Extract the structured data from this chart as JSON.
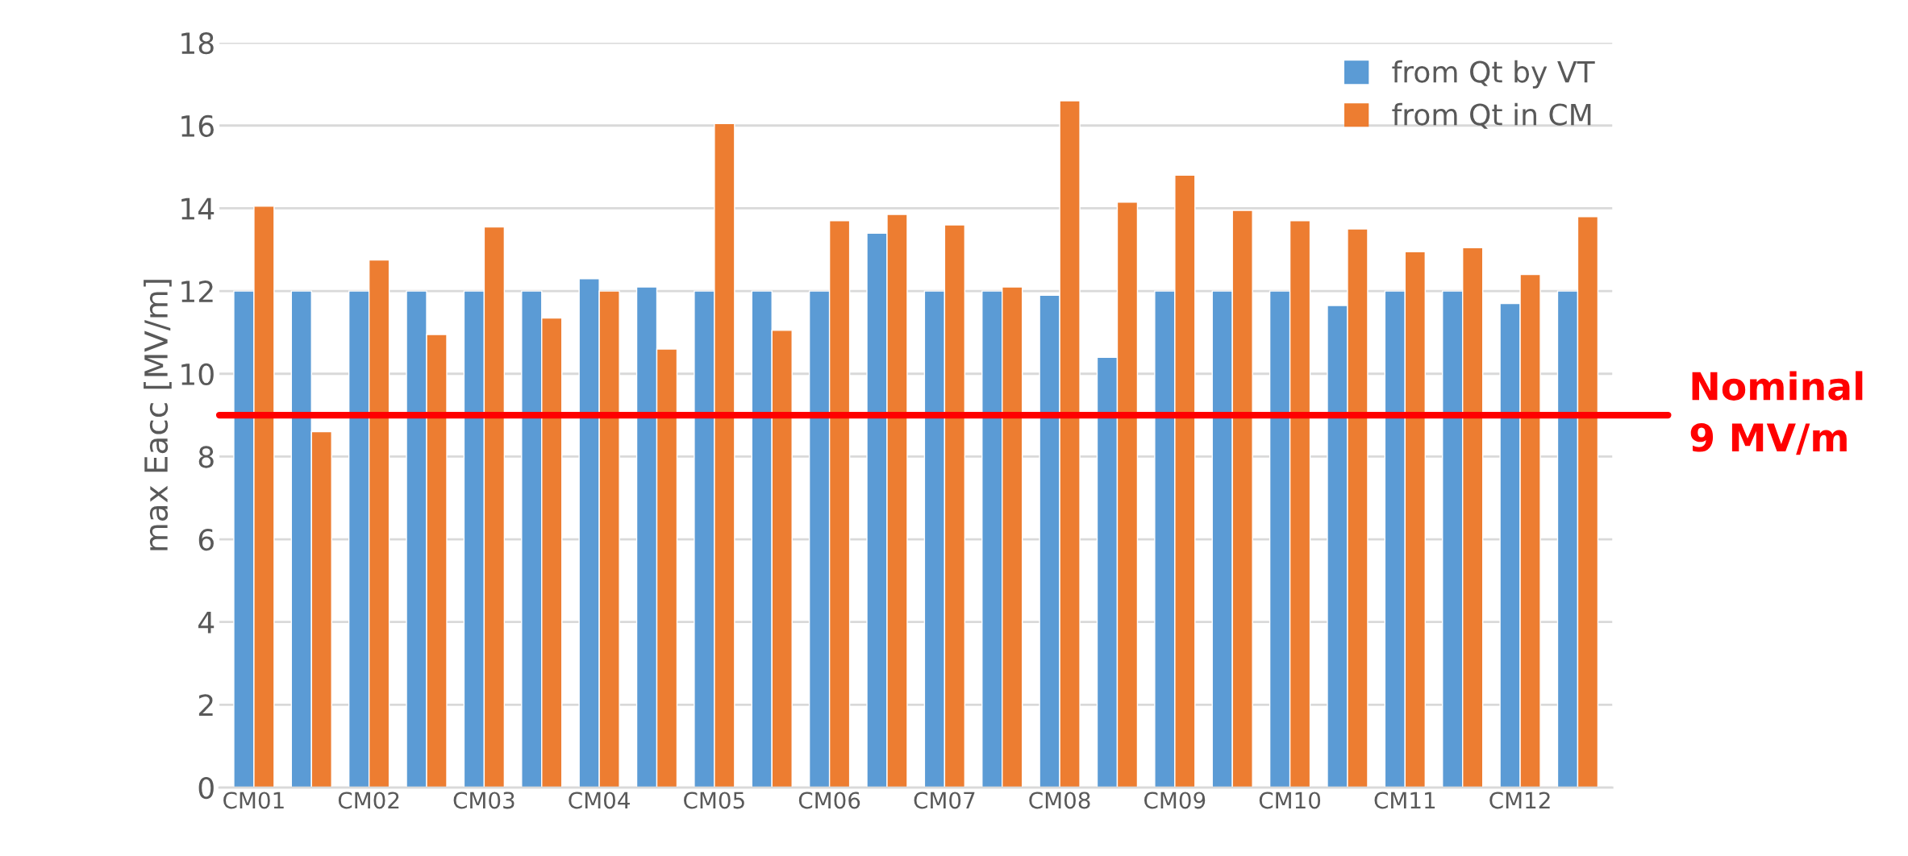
{
  "chart_data": {
    "type": "bar",
    "ylabel": "max Eacc [MV/m]",
    "categories": [
      "CM01",
      null,
      "CM02",
      null,
      "CM03",
      null,
      "CM04",
      null,
      "CM05",
      null,
      "CM06",
      null,
      "CM07",
      null,
      "CM08",
      null,
      "CM09",
      null,
      "CM10",
      null,
      "CM11",
      null,
      "CM12",
      null
    ],
    "series": [
      {
        "name": "from Qt by VT",
        "color": "#5b9bd5",
        "values": [
          12,
          12,
          12,
          12,
          12,
          12,
          12.3,
          12.1,
          12,
          12,
          12,
          13.4,
          12,
          12,
          11.9,
          10.4,
          12,
          12,
          12,
          11.65,
          12,
          12,
          11.7,
          12
        ]
      },
      {
        "name": "from Qt in CM",
        "color": "#ed7d31",
        "values": [
          14.05,
          8.6,
          12.75,
          10.95,
          13.55,
          11.35,
          12.0,
          10.6,
          16.05,
          11.05,
          13.7,
          13.85,
          13.6,
          12.1,
          16.6,
          14.15,
          14.8,
          13.95,
          13.7,
          13.5,
          12.95,
          13.05,
          12.4,
          13.8
        ]
      }
    ],
    "ylim": [
      0,
      18
    ],
    "yticks": [
      0,
      2,
      4,
      6,
      8,
      10,
      12,
      14,
      16,
      18
    ],
    "grid": "y",
    "legend": "top right",
    "ref_lines": [
      {
        "axis": "y",
        "value": 9,
        "label": "Nominal\n9 MV/m",
        "color": "#ff0000"
      }
    ]
  }
}
